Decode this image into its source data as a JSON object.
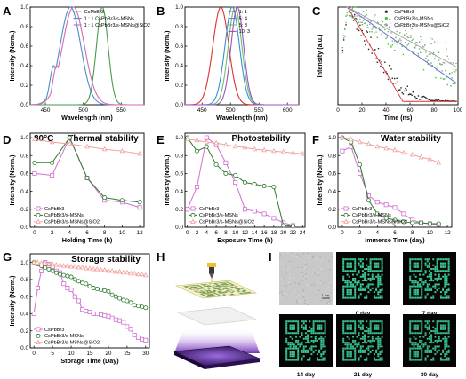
{
  "figure": {
    "panel_labels": [
      "A",
      "B",
      "C",
      "D",
      "E",
      "F",
      "G",
      "H",
      "I"
    ]
  },
  "chart_data": [
    {
      "id": "A",
      "type": "line",
      "xlabel": "Wavelength (nm)",
      "ylabel": "Intensity (Norm.)",
      "xlim": [
        430,
        580
      ],
      "ylim": [
        0,
        1.0
      ],
      "xticks": [
        450,
        500,
        550
      ],
      "yticks": [
        0.0,
        0.2,
        0.4,
        0.6,
        0.8,
        1.0
      ],
      "legend_position": "top-right",
      "series": [
        {
          "name": "CsPbBr3",
          "color": "#4a9a4a",
          "peak": 525,
          "fwhm": 18
        },
        {
          "name": "1 : 1 CsPbBr3/s-MSNs",
          "color": "#4a8fc9",
          "peak": 483,
          "fwhm": 32
        },
        {
          "name": "1 : 1 CsPbBr3/s-MSNs@SiO2",
          "color": "#d46ab0",
          "peak": 487,
          "fwhm": 34
        }
      ]
    },
    {
      "id": "B",
      "type": "line",
      "xlabel": "Wavelength (nm)",
      "ylabel": "Intensity (Norm.)",
      "xlim": [
        420,
        620
      ],
      "ylim": [
        0,
        1.0
      ],
      "xticks": [
        450,
        500,
        550,
        600
      ],
      "yticks": [
        0.0,
        0.2,
        0.4,
        0.6,
        0.8,
        1.0
      ],
      "legend_position": "top-right",
      "series": [
        {
          "name": "1: 1",
          "color": "#e03030",
          "peak": 483,
          "fwhm": 33
        },
        {
          "name": "5: 4",
          "color": "#3b8fd0",
          "peak": 503,
          "fwhm": 30
        },
        {
          "name": "5: 3",
          "color": "#6bbf6b",
          "peak": 508,
          "fwhm": 28
        },
        {
          "name": "10: 3",
          "color": "#a050c0",
          "peak": 512,
          "fwhm": 26
        }
      ]
    },
    {
      "id": "C",
      "type": "scatter",
      "xlabel": "Time (ns)",
      "ylabel": "Intensity (a.u.)",
      "xlim": [
        0,
        100
      ],
      "xticks": [
        0,
        20,
        40,
        60,
        80,
        100
      ],
      "log_y": true,
      "legend_position": "top-right",
      "series": [
        {
          "name": "CsPbBr3",
          "color": "#222222",
          "tau": 9
        },
        {
          "name": "CsPbBr3/s-MSNs",
          "color": "#44c444",
          "tau": 22
        },
        {
          "name": "CsPbBr3/s-MSNs@SiO2",
          "color": "#a0a0a0",
          "tau": 28
        }
      ]
    },
    {
      "id": "D",
      "type": "line",
      "title": "Thermal stability",
      "annotation": "80°C",
      "xlabel": "Holding Time (h)",
      "ylabel": "Intensity (Norm.)",
      "xlim": [
        -0.5,
        12.5
      ],
      "ylim": [
        0,
        1.05
      ],
      "xticks": [
        0,
        2,
        4,
        6,
        8,
        10,
        12
      ],
      "yticks": [
        0.0,
        0.2,
        0.4,
        0.6,
        0.8,
        1.0
      ],
      "legend_position": "bottom-left",
      "series": [
        {
          "name": "CsPbBr3",
          "color": "#d070d0",
          "marker": "square",
          "x": [
            0,
            2,
            4,
            6,
            8,
            10,
            12
          ],
          "y": [
            0.6,
            0.58,
            1.0,
            0.55,
            0.3,
            0.28,
            0.22
          ]
        },
        {
          "name": "CsPbBr3/s-MSNs",
          "color": "#2a7a2a",
          "marker": "circle",
          "x": [
            0,
            2,
            4,
            6,
            8,
            10,
            12
          ],
          "y": [
            0.72,
            0.72,
            1.0,
            0.55,
            0.33,
            0.3,
            0.28
          ]
        },
        {
          "name": "CsPbBr3/s-MSNs@SiO2",
          "color": "#f0a0a0",
          "marker": "triangle",
          "x": [
            0,
            2,
            4,
            6,
            8,
            10,
            12
          ],
          "y": [
            0.98,
            0.95,
            0.93,
            0.9,
            0.87,
            0.85,
            0.82
          ]
        }
      ]
    },
    {
      "id": "E",
      "type": "line",
      "title": "Photostability",
      "xlabel": "Exposure Time (h)",
      "ylabel": "Intensity (Norm.)",
      "xlim": [
        -0.5,
        24.5
      ],
      "ylim": [
        0,
        1.05
      ],
      "xticks": [
        0,
        2,
        4,
        6,
        8,
        10,
        12,
        14,
        16,
        18,
        20,
        22,
        24
      ],
      "yticks": [
        0.0,
        0.2,
        0.4,
        0.6,
        0.8,
        1.0
      ],
      "legend_position": "bottom-left",
      "series": [
        {
          "name": "CsPbBr3",
          "color": "#d070d0",
          "marker": "square",
          "x": [
            0,
            2,
            4,
            6,
            8,
            10,
            12,
            14,
            16,
            18,
            20,
            22
          ],
          "y": [
            0.2,
            0.45,
            1.0,
            0.92,
            0.72,
            0.5,
            0.2,
            0.18,
            0.15,
            0.1,
            0.05,
            0.02
          ]
        },
        {
          "name": "CsPbBr3/s-MSNs",
          "color": "#2a7a2a",
          "marker": "circle",
          "x": [
            0,
            2,
            4,
            6,
            8,
            10,
            12,
            14,
            16,
            18,
            20,
            22
          ],
          "y": [
            1.0,
            0.85,
            0.9,
            0.7,
            0.6,
            0.58,
            0.5,
            0.48,
            0.46,
            0.45,
            0.02,
            0.01
          ]
        },
        {
          "name": "CsPbBr3/s-MSNs@SiO2",
          "color": "#f0a0a0",
          "marker": "triangle",
          "x": [
            0,
            2,
            4,
            6,
            8,
            10,
            12,
            14,
            16,
            18,
            20,
            22,
            24
          ],
          "y": [
            0.98,
            0.97,
            0.95,
            0.94,
            0.92,
            0.9,
            0.89,
            0.87,
            0.86,
            0.85,
            0.84,
            0.83,
            0.82
          ]
        }
      ]
    },
    {
      "id": "F",
      "type": "line",
      "title": "Water stability",
      "xlabel": "Immerse Time (day)",
      "ylabel": "Intensity (Norm.)",
      "xlim": [
        -0.5,
        12.5
      ],
      "ylim": [
        0,
        1.05
      ],
      "xticks": [
        0,
        2,
        4,
        6,
        8,
        10,
        12
      ],
      "yticks": [
        0.0,
        0.2,
        0.4,
        0.6,
        0.8,
        1.0
      ],
      "legend_position": "bottom-left",
      "series": [
        {
          "name": "CsPbBr3",
          "color": "#d070d0",
          "marker": "square",
          "x": [
            0,
            1,
            2,
            3,
            4,
            5,
            6,
            7,
            8,
            9,
            10,
            11
          ],
          "y": [
            0.85,
            0.9,
            0.6,
            0.35,
            0.28,
            0.25,
            0.22,
            0.15,
            0.08,
            0.05,
            0.04,
            0.03
          ]
        },
        {
          "name": "CsPbBr3/s-MSNs",
          "color": "#2a7a2a",
          "marker": "circle",
          "x": [
            0,
            1,
            2,
            3,
            4,
            5,
            6,
            7,
            8,
            9,
            10,
            11
          ],
          "y": [
            1.0,
            0.95,
            0.7,
            0.3,
            0.15,
            0.1,
            0.08,
            0.06,
            0.05,
            0.05,
            0.04,
            0.04
          ]
        },
        {
          "name": "CsPbBr3/s-MSNs@SiO2",
          "color": "#f0a0a0",
          "marker": "triangle",
          "x": [
            0,
            1,
            2,
            3,
            4,
            5,
            6,
            7,
            8,
            9,
            10,
            11
          ],
          "y": [
            1.0,
            0.98,
            0.95,
            0.93,
            0.9,
            0.88,
            0.86,
            0.83,
            0.81,
            0.78,
            0.76,
            0.72
          ]
        }
      ]
    },
    {
      "id": "G",
      "type": "line",
      "title": "Storage stability",
      "xlabel": "Storage Time (Day)",
      "ylabel": "Intensity (Norm.)",
      "xlim": [
        -1,
        31
      ],
      "ylim": [
        0,
        1.1
      ],
      "xticks": [
        0,
        5,
        10,
        15,
        20,
        25,
        30
      ],
      "yticks": [
        0.0,
        0.2,
        0.4,
        0.6,
        0.8,
        1.0
      ],
      "legend_position": "bottom-left",
      "series": [
        {
          "name": "CsPbBr3",
          "color": "#d070d0",
          "marker": "square",
          "x": [
            0,
            1,
            2,
            3,
            4,
            5,
            6,
            7,
            8,
            9,
            10,
            11,
            12,
            13,
            14,
            15,
            16,
            17,
            18,
            19,
            20,
            21,
            22,
            23,
            24,
            25,
            26,
            27,
            28,
            29,
            30
          ],
          "y": [
            0.4,
            0.7,
            0.9,
            1.0,
            0.98,
            0.95,
            0.9,
            0.88,
            0.75,
            0.7,
            0.68,
            0.6,
            0.55,
            0.45,
            0.43,
            0.42,
            0.4,
            0.4,
            0.39,
            0.38,
            0.37,
            0.35,
            0.33,
            0.32,
            0.3,
            0.25,
            0.22,
            0.15,
            0.12,
            0.1,
            0.09
          ]
        },
        {
          "name": "CsPbBr3/s-MSNs",
          "color": "#2a7a2a",
          "marker": "circle",
          "x": [
            0,
            1,
            2,
            3,
            4,
            5,
            6,
            7,
            8,
            9,
            10,
            11,
            12,
            13,
            14,
            15,
            16,
            17,
            18,
            19,
            20,
            21,
            22,
            23,
            24,
            25,
            26,
            27,
            28,
            29,
            30
          ],
          "y": [
            1.0,
            0.98,
            0.96,
            0.94,
            0.92,
            0.9,
            0.88,
            0.86,
            0.85,
            0.84,
            0.83,
            0.8,
            0.78,
            0.76,
            0.75,
            0.72,
            0.7,
            0.69,
            0.68,
            0.67,
            0.66,
            0.62,
            0.6,
            0.58,
            0.56,
            0.55,
            0.53,
            0.5,
            0.49,
            0.48,
            0.47
          ]
        },
        {
          "name": "CsPbBr3/s-MSNs@SiO2",
          "color": "#f0a0a0",
          "marker": "triangle",
          "x": [
            0,
            1,
            2,
            3,
            4,
            5,
            6,
            7,
            8,
            9,
            10,
            11,
            12,
            13,
            14,
            15,
            16,
            17,
            18,
            19,
            20,
            21,
            22,
            23,
            24,
            25,
            26,
            27,
            28,
            29,
            30
          ],
          "y": [
            1.0,
            1.0,
            0.99,
            0.99,
            0.98,
            0.98,
            0.97,
            0.97,
            0.96,
            0.96,
            0.95,
            0.95,
            0.94,
            0.94,
            0.93,
            0.93,
            0.92,
            0.92,
            0.91,
            0.91,
            0.9,
            0.9,
            0.89,
            0.89,
            0.88,
            0.88,
            0.87,
            0.87,
            0.86,
            0.86,
            0.85
          ]
        }
      ]
    }
  ],
  "panel_I": {
    "scale_bar": "1 cm",
    "days": [
      "0 day",
      "7 day",
      "14 day",
      "21 day",
      "30 day"
    ],
    "qr_color": "#3fd9a0"
  }
}
